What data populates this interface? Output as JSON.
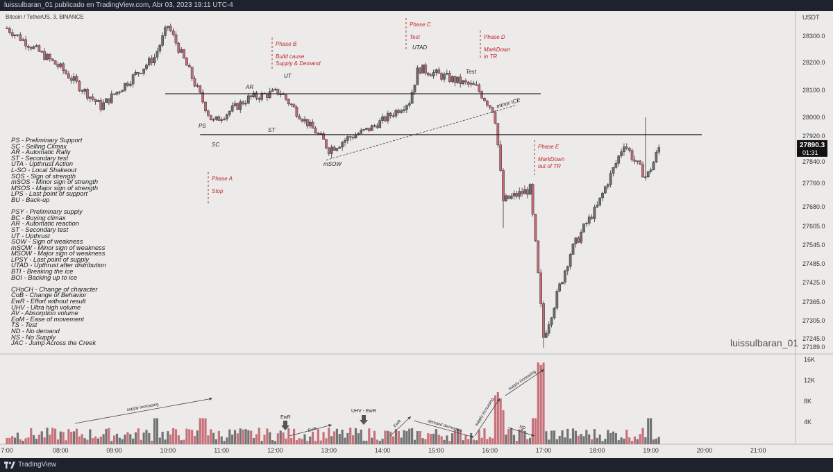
{
  "header": {
    "publish_line": "luissulbaran_01 publicado en TradingView.com, Abr 03, 2023 19:11 UTC-4"
  },
  "symbol_line": "Bitcoin / TetherUS, 3, BINANCE",
  "watermark": "luissulbaran_01",
  "footer": {
    "brand": "TradingView",
    "logo_icon": "tradingview-logo-icon"
  },
  "price_axis": {
    "currency": "USDT",
    "current_price": "27890.3",
    "countdown": "01:31"
  },
  "volume_axis_labels": [
    "16K",
    "12K",
    "8K",
    "4K"
  ],
  "annotations": {
    "phase_a": "Phase A",
    "stop": "Stop",
    "phase_b": "Phase B",
    "build_cause": "Build cause",
    "supply_demand": "Supply & Demand",
    "phase_c": "Phase C",
    "test_c": "Test",
    "phase_d": "Phase D",
    "markdown_in": "MarkDown",
    "in_tr": "in TR",
    "phase_e": "Phase E",
    "markdown_out": "MarkDown",
    "out_tr": "out of TR",
    "ps": "PS",
    "sc": "SC",
    "ar": "AR",
    "st": "ST",
    "ut": "UT",
    "msow": "mSOW",
    "utad": "UTAD",
    "test": "Test",
    "minor_ice": "minor ICE",
    "supply_increasing_1": "supply increasing",
    "ewr_1": "EwR",
    "ewr_2": "EwR",
    "uhv_ewr": "UHV - EwR",
    "ewr_3": "EwR",
    "demand_decreases": "demand decreases",
    "supply_increasing_2": "supply increasing",
    "supply_increasing_3": "supply increasing",
    "nd": "ND"
  },
  "legend_lines": [
    "PS - Preliminary Support",
    "SC - Selling Climax",
    "AR - Automatic Rally",
    "ST - Secondary test",
    "UTA - Upthrust Action",
    "L-SO - Local Shakeout",
    "SOS - Sign of strength",
    "mSOS - Minor sign of strength",
    "MSOS - Major sign of strength",
    "LPS - Last point of support",
    "BU - Back-up",
    "",
    "PSY - Preliminary supply",
    "BC - Buying climax",
    "AR - Automatic reaction",
    "ST - Secondary test",
    "UT - Upthrust",
    "SOW - Sign of weakness",
    "mSOW - Minor sign of weakness",
    "MSOW - Major sign of weakness",
    "LPSY - Last point of supply",
    "UTAD - Upthrust after distribution",
    "BTI - Breaking the ice",
    "BOI - Backing up to ice",
    "",
    "CHoCH - Change of character",
    "CoB - Change of Behavior",
    "EwR - Effort without result",
    "UHV - Ultra high volume",
    "AV - Absorption volume",
    "EoM - Ease of movement",
    "TS - Test",
    "ND - No demand",
    "NS - No Supply",
    "JAC - Jump Across the Creek"
  ],
  "chart_data": {
    "type": "candlestick",
    "symbol": "Bitcoin / TetherUS",
    "interval": "3",
    "exchange": "BINANCE",
    "y_axis": {
      "ticks": [
        28300,
        28200,
        28100,
        28000,
        27920,
        27840,
        27760,
        27680,
        27605,
        27545,
        27485,
        27425,
        27365,
        27305,
        27245,
        27189
      ],
      "tick_labels": [
        "28300.0",
        "28200.0",
        "28100.0",
        "28000.0",
        "27920.0",
        "27840.0",
        "27760.0",
        "27680.0",
        "27605.0",
        "27545.0",
        "27485.0",
        "27425.0",
        "27365.0",
        "27305.0",
        "27245.0",
        "27189.0"
      ]
    },
    "x_axis": {
      "tick_labels": [
        "7:00",
        "08:00",
        "09:00",
        "10:00",
        "11:00",
        "12:00",
        "13:00",
        "14:00",
        "15:00",
        "16:00",
        "17:00",
        "18:00",
        "19:00",
        "20:00",
        "21:00"
      ]
    },
    "horizontal_levels": [
      28087,
      27926
    ],
    "colors": {
      "up": "#6d6d6d",
      "down": "#c56a74",
      "annotation_red": "#c0282e",
      "line": "#111111"
    },
    "key_points": [
      {
        "time": "07:00",
        "close": 28330
      },
      {
        "time": "08:00",
        "close": 28180
      },
      {
        "time": "08:45",
        "close": 28040
      },
      {
        "time": "09:45",
        "close": 28220
      },
      {
        "time": "10:00",
        "close": 28340
      },
      {
        "time": "10:50",
        "close": 27980
      },
      {
        "time": "11:30",
        "close": 28070
      },
      {
        "time": "12:05",
        "close": 28095
      },
      {
        "time": "13:00",
        "close": 27880
      },
      {
        "time": "13:45",
        "close": 27950
      },
      {
        "time": "14:30",
        "close": 28060
      },
      {
        "time": "14:40",
        "close": 28180
      },
      {
        "time": "15:45",
        "close": 28110
      },
      {
        "time": "16:05",
        "close": 28020
      },
      {
        "time": "16:15",
        "close": 27700
      },
      {
        "time": "16:45",
        "close": 27740
      },
      {
        "time": "17:00",
        "close": 27250
      },
      {
        "time": "17:30",
        "close": 27520
      },
      {
        "time": "18:00",
        "close": 27680
      },
      {
        "time": "18:30",
        "close": 27900
      },
      {
        "time": "18:55",
        "close": 27780
      },
      {
        "time": "19:10",
        "close": 27890
      }
    ],
    "volume_max": 16000
  }
}
